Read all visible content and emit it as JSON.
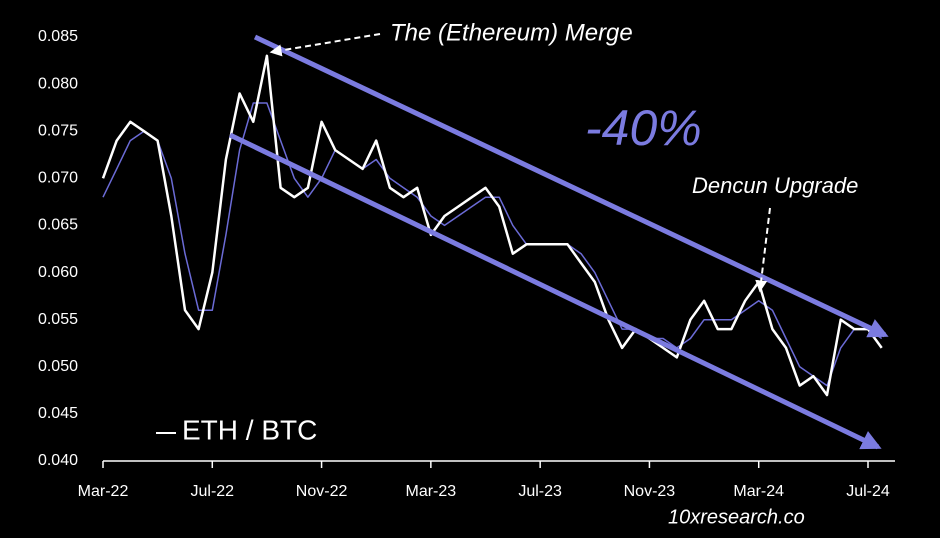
{
  "chart_data": {
    "type": "line",
    "categories": [
      "Mar-22",
      null,
      null,
      null,
      null,
      null,
      null,
      null,
      "Jul-22",
      null,
      null,
      null,
      null,
      null,
      null,
      null,
      "Nov-22",
      null,
      null,
      null,
      null,
      null,
      null,
      null,
      "Mar-23",
      null,
      null,
      null,
      null,
      null,
      null,
      null,
      "Jul-23",
      null,
      null,
      null,
      null,
      null,
      null,
      null,
      "Nov-23",
      null,
      null,
      null,
      null,
      null,
      null,
      null,
      "Mar-24",
      null,
      null,
      null,
      null,
      null,
      null,
      null,
      "Jul-24",
      null
    ],
    "series": [
      {
        "name": "ETH / BTC",
        "color": "#ffffff",
        "values": [
          0.07,
          0.074,
          0.076,
          0.075,
          0.074,
          0.066,
          0.056,
          0.054,
          0.06,
          0.072,
          0.079,
          0.076,
          0.083,
          0.069,
          0.068,
          0.069,
          0.076,
          0.073,
          0.072,
          0.071,
          0.074,
          0.069,
          0.068,
          0.069,
          0.064,
          0.066,
          0.067,
          0.068,
          0.069,
          0.067,
          0.062,
          0.063,
          0.063,
          0.063,
          0.063,
          0.061,
          0.059,
          0.055,
          0.052,
          0.054,
          0.053,
          0.052,
          0.051,
          0.055,
          0.057,
          0.054,
          0.054,
          0.057,
          0.059,
          0.054,
          0.052,
          0.048,
          0.049,
          0.047,
          0.055,
          0.054,
          0.054,
          0.052
        ]
      },
      {
        "color": "#6b6bd6",
        "values": [
          0.068,
          0.071,
          0.074,
          0.075,
          0.074,
          0.07,
          0.062,
          0.056,
          0.056,
          0.064,
          0.073,
          0.078,
          0.078,
          0.074,
          0.07,
          0.068,
          0.07,
          0.073,
          0.072,
          0.071,
          0.072,
          0.07,
          0.069,
          0.068,
          0.066,
          0.065,
          0.066,
          0.067,
          0.068,
          0.068,
          0.065,
          0.063,
          0.063,
          0.063,
          0.063,
          0.062,
          0.06,
          0.057,
          0.054,
          0.054,
          0.053,
          0.053,
          0.052,
          0.053,
          0.055,
          0.055,
          0.055,
          0.056,
          0.057,
          0.056,
          0.053,
          0.05,
          0.049,
          0.048,
          0.052,
          0.054,
          0.054,
          0.053
        ]
      }
    ],
    "ylim": [
      0.04,
      0.085
    ],
    "yticks": [
      {
        "value": 0.04,
        "label": "0.040"
      },
      {
        "value": 0.045,
        "label": "0.045"
      },
      {
        "value": 0.05,
        "label": "0.050"
      },
      {
        "value": 0.055,
        "label": "0.055"
      },
      {
        "value": 0.06,
        "label": "0.060"
      },
      {
        "value": 0.065,
        "label": "0.065"
      },
      {
        "value": 0.07,
        "label": "0.070"
      },
      {
        "value": 0.075,
        "label": "0.075"
      },
      {
        "value": 0.08,
        "label": "0.080"
      },
      {
        "value": 0.085,
        "label": "0.085"
      }
    ],
    "annotations": [
      "The (Ethereum) Merge",
      "-40%",
      "Dencun Upgrade",
      "10xresearch.co"
    ]
  }
}
